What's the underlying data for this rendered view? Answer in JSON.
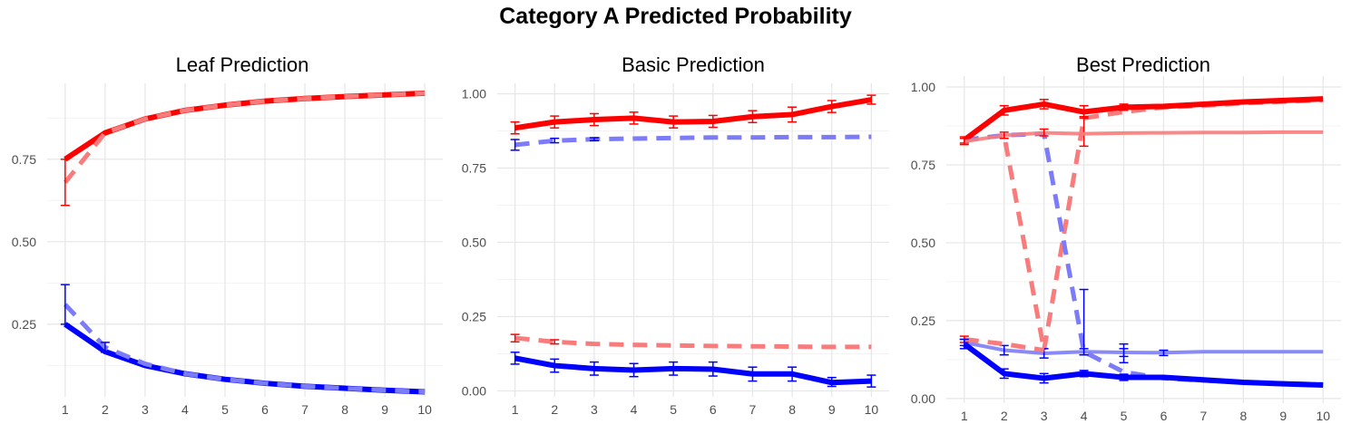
{
  "title": "Category A Predicted Probability",
  "colors": {
    "red_solid": "#ff0000",
    "red_dashed": "#f87c7c",
    "blue_solid": "#0000ff",
    "blue_dashed": "#7c7cf8",
    "grid_major": "#e6e6e6",
    "grid_minor": "#f3f3f3"
  },
  "chart_data": [
    {
      "type": "line",
      "title": "Leaf Prediction",
      "xlabel": "",
      "ylabel": "",
      "x": [
        1,
        2,
        3,
        4,
        5,
        6,
        7,
        8,
        9,
        10
      ],
      "ylim": [
        0.03,
        0.98
      ],
      "yticks": [
        0.25,
        0.5,
        0.75
      ],
      "ytick_labels": [
        "0.25",
        "0.50",
        "0.75"
      ],
      "grid": true,
      "series": [
        {
          "color": "red",
          "style": "solid",
          "values": [
            0.75,
            0.83,
            0.872,
            0.898,
            0.914,
            0.926,
            0.934,
            0.94,
            0.945,
            0.95
          ]
        },
        {
          "color": "red",
          "style": "dashed",
          "values": [
            0.68,
            0.83,
            0.872,
            0.898,
            0.914,
            0.926,
            0.934,
            0.94,
            0.945,
            0.95
          ],
          "err_low": [
            0.61,
            null,
            null,
            null,
            null,
            null,
            null,
            null,
            null,
            null
          ],
          "err_high": [
            0.75,
            null,
            null,
            null,
            null,
            null,
            null,
            null,
            null,
            null
          ]
        },
        {
          "color": "blue",
          "style": "solid",
          "values": [
            0.25,
            0.167,
            0.125,
            0.1,
            0.083,
            0.071,
            0.062,
            0.056,
            0.05,
            0.045
          ]
        },
        {
          "color": "blue",
          "style": "dashed",
          "values": [
            0.31,
            0.18,
            0.13,
            0.1,
            0.083,
            0.071,
            0.062,
            0.056,
            0.05,
            0.045
          ],
          "err_low": [
            0.25,
            0.165,
            null,
            null,
            null,
            null,
            null,
            null,
            null,
            null
          ],
          "err_high": [
            0.37,
            0.195,
            null,
            null,
            null,
            null,
            null,
            null,
            null,
            null
          ]
        }
      ]
    },
    {
      "type": "line",
      "title": "Basic Prediction",
      "xlabel": "",
      "ylabel": "",
      "x": [
        1,
        2,
        3,
        4,
        5,
        6,
        7,
        8,
        9,
        10
      ],
      "ylim": [
        -0.02,
        1.035
      ],
      "yticks": [
        0,
        0.25,
        0.5,
        0.75,
        1.0
      ],
      "ytick_labels": [
        "0.00",
        "0.25",
        "0.50",
        "0.75",
        "1.00"
      ],
      "grid": true,
      "series": [
        {
          "color": "red",
          "style": "solid",
          "values": [
            0.885,
            0.905,
            0.913,
            0.918,
            0.905,
            0.907,
            0.923,
            0.93,
            0.957,
            0.98
          ],
          "err_low": [
            0.865,
            0.885,
            0.893,
            0.898,
            0.885,
            0.887,
            0.903,
            0.905,
            0.937,
            0.965
          ],
          "err_high": [
            0.905,
            0.925,
            0.933,
            0.938,
            0.925,
            0.927,
            0.943,
            0.955,
            0.977,
            0.995
          ]
        },
        {
          "color": "blue",
          "style": "dashed",
          "values": [
            0.828,
            0.842,
            0.847,
            0.849,
            0.851,
            0.853,
            0.853,
            0.854,
            0.854,
            0.855
          ],
          "err_low": [
            0.81,
            0.835,
            0.842,
            null,
            null,
            null,
            null,
            null,
            null,
            null
          ],
          "err_high": [
            0.846,
            0.85,
            0.852,
            null,
            null,
            null,
            null,
            null,
            null,
            null
          ]
        },
        {
          "color": "red",
          "style": "dashed",
          "values": [
            0.178,
            0.165,
            0.158,
            0.155,
            0.153,
            0.151,
            0.15,
            0.149,
            0.148,
            0.148
          ],
          "err_low": [
            0.165,
            0.158,
            null,
            null,
            null,
            null,
            null,
            null,
            null,
            null
          ],
          "err_high": [
            0.19,
            0.172,
            null,
            null,
            null,
            null,
            null,
            null,
            null,
            null
          ]
        },
        {
          "color": "blue",
          "style": "solid",
          "values": [
            0.11,
            0.085,
            0.075,
            0.07,
            0.075,
            0.073,
            0.057,
            0.057,
            0.028,
            0.033
          ],
          "err_low": [
            0.09,
            0.063,
            0.053,
            0.048,
            0.053,
            0.05,
            0.033,
            0.033,
            0.015,
            0.013
          ],
          "err_high": [
            0.13,
            0.107,
            0.097,
            0.092,
            0.097,
            0.097,
            0.08,
            0.08,
            0.045,
            0.053
          ]
        }
      ]
    },
    {
      "type": "line",
      "title": "Best Prediction",
      "xlabel": "",
      "ylabel": "",
      "x": [
        1,
        2,
        3,
        4,
        5,
        6,
        7,
        8,
        9,
        10
      ],
      "ylim": [
        -0.015,
        1.035
      ],
      "yticks": [
        0,
        0.25,
        0.5,
        0.75,
        1.0
      ],
      "ytick_labels": [
        "0.00",
        "0.25",
        "0.50",
        "0.75",
        "1.00"
      ],
      "grid": true,
      "series": [
        {
          "color": "red",
          "style": "dashed",
          "values": [
            0.83,
            0.845,
            0.155,
            0.9,
            0.92,
            0.935,
            0.94,
            0.948,
            0.953,
            0.958
          ],
          "err_low": [
            null,
            null,
            null,
            0.81,
            null,
            null,
            null,
            null,
            null,
            null
          ],
          "err_high": [
            null,
            null,
            null,
            0.905,
            null,
            null,
            null,
            null,
            null,
            null
          ]
        },
        {
          "color": "blue",
          "style": "dashed",
          "values": [
            0.83,
            0.845,
            0.85,
            0.15,
            0.085,
            0.065,
            0.058,
            0.052,
            0.048,
            0.045
          ],
          "err_low": [
            null,
            null,
            null,
            0.14,
            0.115,
            null,
            null,
            null,
            null,
            null
          ],
          "err_high": [
            null,
            null,
            null,
            0.35,
            0.175,
            null,
            null,
            null,
            null,
            null
          ]
        },
        {
          "color": "red",
          "style": "solid",
          "values": [
            0.83,
            0.925,
            0.945,
            0.92,
            0.935,
            0.938,
            0.945,
            0.952,
            0.957,
            0.962
          ],
          "err_low": [
            0.82,
            0.91,
            0.93,
            0.9,
            0.925,
            null,
            null,
            null,
            null,
            null
          ],
          "err_high": [
            0.84,
            0.94,
            0.96,
            0.94,
            0.945,
            null,
            null,
            null,
            null,
            null
          ]
        },
        {
          "color": "red",
          "style": "solid_faded",
          "values": [
            0.825,
            0.845,
            0.853,
            0.85,
            0.852,
            0.853,
            0.854,
            0.854,
            0.855,
            0.855
          ],
          "err_low": [
            0.815,
            0.835,
            0.843,
            null,
            null,
            null,
            null,
            null,
            null,
            null
          ],
          "err_high": [
            0.835,
            0.855,
            0.865,
            null,
            null,
            null,
            null,
            null,
            null,
            null
          ]
        },
        {
          "color": "blue",
          "style": "solid_faded",
          "values": [
            0.18,
            0.155,
            0.145,
            0.15,
            0.148,
            0.147,
            0.15,
            0.15,
            0.15,
            0.15
          ],
          "err_low": [
            0.17,
            0.14,
            0.13,
            0.14,
            0.135,
            0.138,
            null,
            null,
            null,
            null
          ],
          "err_high": [
            0.19,
            0.17,
            0.16,
            0.16,
            0.16,
            0.155,
            null,
            null,
            null,
            null
          ]
        },
        {
          "color": "red",
          "style": "dashed",
          "values": [
            0.19,
            0.175,
            0.155,
            null,
            null,
            null,
            null,
            null,
            null,
            null
          ],
          "err_low": [
            0.18,
            null,
            null,
            null,
            null,
            null,
            null,
            null,
            null,
            null
          ],
          "err_high": [
            0.2,
            null,
            null,
            null,
            null,
            null,
            null,
            null,
            null,
            null
          ]
        },
        {
          "color": "blue",
          "style": "solid",
          "values": [
            0.175,
            0.08,
            0.065,
            0.08,
            0.068,
            0.068,
            0.06,
            0.052,
            0.047,
            0.043
          ],
          "err_low": [
            0.16,
            0.065,
            0.05,
            0.07,
            0.058,
            null,
            null,
            null,
            null,
            null
          ],
          "err_high": [
            0.19,
            0.095,
            0.08,
            0.09,
            0.078,
            null,
            null,
            null,
            null,
            null
          ]
        }
      ]
    }
  ]
}
